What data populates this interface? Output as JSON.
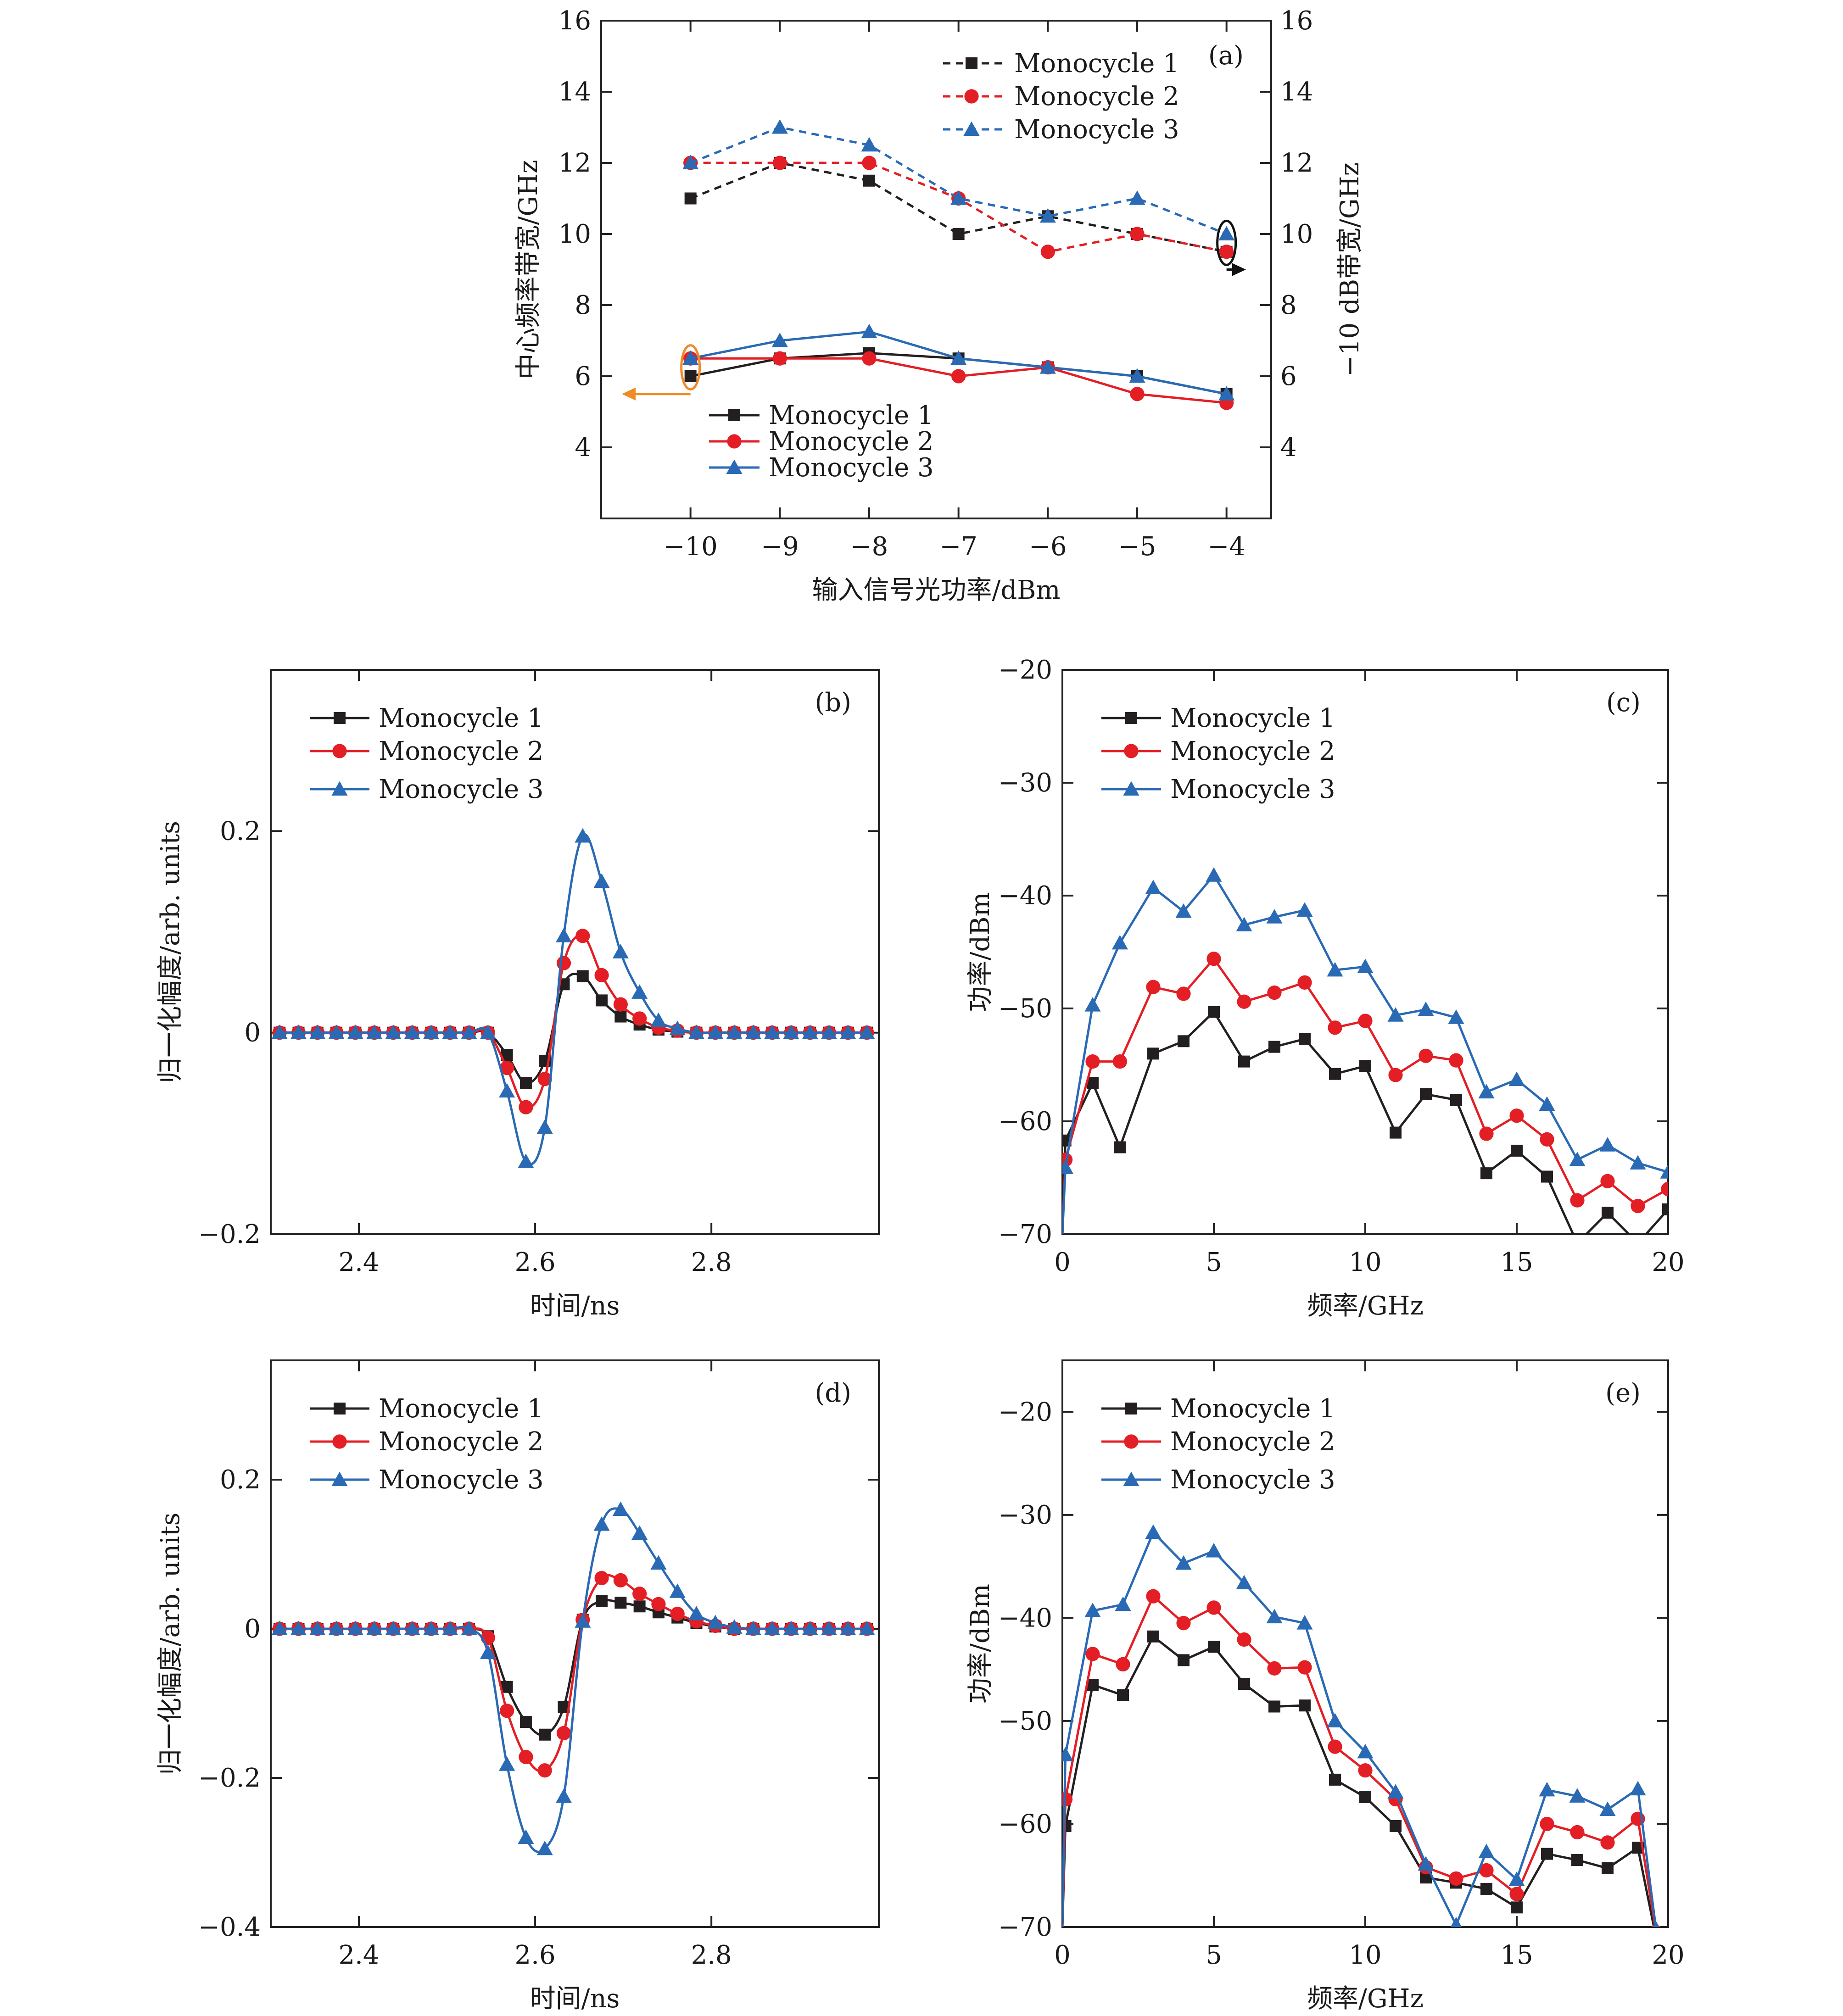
{
  "colors": {
    "black": "#231f20",
    "red": "#e31e24",
    "blue": "#2a6ab4",
    "orange": "#f08a24"
  },
  "chart_data": [
    {
      "id": "a",
      "type": "line",
      "panel_label": "(a)",
      "xlabel": "输入信号光功率/dBm",
      "ylabel": "中心频率带宽/GHz",
      "ylabel_right": "−10 dB带宽/GHz",
      "xlim": [
        -11.0,
        -3.5
      ],
      "ylim": [
        2,
        16
      ],
      "xticks": [
        -10,
        -9,
        -8,
        -7,
        -6,
        -5,
        -4
      ],
      "xtick_labels": [
        "−10",
        "−9",
        "−8",
        "−7",
        "−6",
        "−5",
        "−4"
      ],
      "yticks": [
        4,
        6,
        8,
        10,
        12,
        14,
        16
      ],
      "ytick_labels": [
        "4",
        "6",
        "8",
        "10",
        "12",
        "14",
        "16"
      ],
      "x": [
        -10,
        -9,
        -8,
        -7,
        -6,
        -5,
        -4
      ],
      "series": [
        {
          "name": "Monocycle 1",
          "group": "center",
          "color": "#231f20",
          "marker": "square",
          "dashed": false,
          "values": [
            6.0,
            6.5,
            6.65,
            6.5,
            6.25,
            6.0,
            5.5
          ]
        },
        {
          "name": "Monocycle 2",
          "group": "center",
          "color": "#e31e24",
          "marker": "circle",
          "dashed": false,
          "values": [
            6.5,
            6.5,
            6.5,
            6.0,
            6.25,
            5.5,
            5.25
          ]
        },
        {
          "name": "Monocycle 3",
          "group": "center",
          "color": "#2a6ab4",
          "marker": "triangle",
          "dashed": false,
          "values": [
            6.5,
            7.0,
            7.25,
            6.5,
            6.25,
            6.0,
            5.5
          ]
        },
        {
          "name": "Monocycle 1",
          "group": "bandwidth",
          "color": "#231f20",
          "marker": "square",
          "dashed": true,
          "values": [
            11.0,
            12.0,
            11.5,
            10.0,
            10.5,
            10.0,
            9.5
          ]
        },
        {
          "name": "Monocycle 2",
          "group": "bandwidth",
          "color": "#e31e24",
          "marker": "circle",
          "dashed": true,
          "values": [
            12.0,
            12.0,
            12.0,
            11.0,
            9.5,
            10.0,
            9.5
          ]
        },
        {
          "name": "Monocycle 3",
          "group": "bandwidth",
          "color": "#2a6ab4",
          "marker": "triangle",
          "dashed": true,
          "values": [
            12.0,
            13.0,
            12.5,
            11.0,
            10.5,
            11.0,
            10.0
          ]
        }
      ]
    },
    {
      "id": "b",
      "type": "line",
      "panel_label": "(b)",
      "xlabel": "时间/ns",
      "ylabel": "归一化幅度/arb. units",
      "xlim": [
        2.3,
        2.99
      ],
      "ylim": [
        -0.2,
        0.36
      ],
      "xticks": [
        2.4,
        2.6,
        2.8
      ],
      "xtick_labels": [
        "2.4",
        "2.6",
        "2.8"
      ],
      "yticks": [
        -0.2,
        0,
        0.2
      ],
      "ytick_labels": [
        "−0.2",
        "0",
        "0.2"
      ],
      "x": [
        2.31,
        2.3315,
        2.353,
        2.3745,
        2.396,
        2.4175,
        2.439,
        2.4605,
        2.482,
        2.5035,
        2.525,
        2.5465,
        2.568,
        2.5895,
        2.611,
        2.6325,
        2.654,
        2.6755,
        2.697,
        2.7185,
        2.74,
        2.7615,
        2.783,
        2.8045,
        2.826,
        2.8475,
        2.869,
        2.8905,
        2.912,
        2.9335,
        2.955,
        2.9765
      ],
      "series": [
        {
          "name": "Monocycle 1",
          "color": "#231f20",
          "marker": "square",
          "values": [
            0,
            0,
            0,
            0,
            0,
            0,
            0,
            0,
            0,
            0,
            0,
            0,
            -0.022,
            -0.05,
            -0.028,
            0.048,
            0.056,
            0.032,
            0.016,
            0.008,
            0.003,
            0.001,
            0,
            0,
            0,
            0,
            0,
            0,
            0,
            0,
            0,
            0
          ]
        },
        {
          "name": "Monocycle 2",
          "color": "#e31e24",
          "marker": "circle",
          "values": [
            0,
            0,
            0,
            0,
            0,
            0,
            0,
            0,
            0,
            0,
            0,
            0,
            -0.035,
            -0.074,
            -0.046,
            0.069,
            0.096,
            0.057,
            0.028,
            0.014,
            0.005,
            0.002,
            0,
            0,
            0,
            0,
            0,
            0,
            0,
            0,
            0,
            0
          ]
        },
        {
          "name": "Monocycle 3",
          "color": "#2a6ab4",
          "marker": "triangle",
          "values": [
            0,
            0,
            0,
            0,
            0,
            0,
            0,
            0,
            0,
            0,
            0,
            0,
            -0.058,
            -0.128,
            -0.094,
            0.096,
            0.195,
            0.15,
            0.08,
            0.04,
            0.012,
            0.004,
            0,
            0,
            0,
            0,
            0,
            0,
            0,
            0,
            0,
            0
          ]
        }
      ]
    },
    {
      "id": "c",
      "type": "line",
      "panel_label": "(c)",
      "xlabel": "频率/GHz",
      "ylabel": "功率/dBm",
      "xlim": [
        0,
        20
      ],
      "ylim": [
        -70,
        -20
      ],
      "xticks": [
        0,
        5,
        10,
        15,
        20
      ],
      "xtick_labels": [
        "0",
        "5",
        "10",
        "15",
        "20"
      ],
      "yticks": [
        -70,
        -60,
        -50,
        -40,
        -30,
        -20
      ],
      "ytick_labels": [
        "−70",
        "−60",
        "−50",
        "−40",
        "−30",
        "−20"
      ],
      "x": [
        0.1,
        1,
        1.9,
        3,
        4,
        5,
        6,
        7,
        8,
        9,
        10,
        11,
        12,
        13,
        14,
        15,
        16,
        17,
        18,
        19,
        20
      ],
      "series": [
        {
          "name": "Monocycle 1",
          "color": "#231f20",
          "marker": "square",
          "values": [
            -61.7,
            -56.6,
            -62.3,
            -54.0,
            -52.9,
            -50.3,
            -54.7,
            -53.4,
            -52.7,
            -55.8,
            -55.1,
            -61.0,
            -57.6,
            -58.1,
            -64.6,
            -62.6,
            -64.9,
            -70.8,
            -68.1,
            -70.8,
            -67.8
          ]
        },
        {
          "name": "Monocycle 2",
          "color": "#e31e24",
          "marker": "circle",
          "values": [
            -63.4,
            -54.7,
            -54.7,
            -48.1,
            -48.7,
            -45.6,
            -49.4,
            -48.6,
            -47.7,
            -51.7,
            -51.1,
            -55.9,
            -54.2,
            -54.6,
            -61.1,
            -59.5,
            -61.6,
            -67.0,
            -65.3,
            -67.5,
            -66.0
          ]
        },
        {
          "name": "Monocycle 3",
          "color": "#2a6ab4",
          "marker": "triangle",
          "values": [
            -64.1,
            -49.7,
            -44.2,
            -39.3,
            -41.4,
            -38.2,
            -42.6,
            -41.9,
            -41.3,
            -46.6,
            -46.3,
            -50.6,
            -50.1,
            -50.8,
            -57.4,
            -56.3,
            -58.5,
            -63.4,
            -62.1,
            -63.7,
            -64.5
          ]
        }
      ]
    },
    {
      "id": "d",
      "type": "line",
      "panel_label": "(d)",
      "xlabel": "时间/ns",
      "ylabel": "归一化幅度/arb. units",
      "xlim": [
        2.3,
        2.99
      ],
      "ylim": [
        -0.4,
        0.36
      ],
      "xticks": [
        2.4,
        2.6,
        2.8
      ],
      "xtick_labels": [
        "2.4",
        "2.6",
        "2.8"
      ],
      "yticks": [
        -0.4,
        -0.2,
        0,
        0.2
      ],
      "ytick_labels": [
        "−0.4",
        "−0.2",
        "0",
        "0.2"
      ],
      "x": [
        2.31,
        2.3315,
        2.353,
        2.3745,
        2.396,
        2.4175,
        2.439,
        2.4605,
        2.482,
        2.5035,
        2.525,
        2.5465,
        2.568,
        2.5895,
        2.611,
        2.6325,
        2.654,
        2.6755,
        2.697,
        2.7185,
        2.74,
        2.7615,
        2.783,
        2.8045,
        2.826,
        2.8475,
        2.869,
        2.8905,
        2.912,
        2.9335,
        2.955,
        2.9765
      ],
      "series": [
        {
          "name": "Monocycle 1",
          "color": "#231f20",
          "marker": "square",
          "values": [
            0,
            0,
            0,
            0,
            0,
            0,
            0,
            0,
            0,
            0,
            0,
            -0.01,
            -0.078,
            -0.125,
            -0.142,
            -0.105,
            0.012,
            0.037,
            0.035,
            0.03,
            0.022,
            0.015,
            0.008,
            0.003,
            0,
            0,
            0,
            0,
            0,
            0,
            0,
            0
          ]
        },
        {
          "name": "Monocycle 2",
          "color": "#e31e24",
          "marker": "circle",
          "values": [
            0,
            0,
            0,
            0,
            0,
            0,
            0,
            0,
            0,
            0,
            0,
            -0.012,
            -0.11,
            -0.172,
            -0.19,
            -0.14,
            0.012,
            0.068,
            0.065,
            0.047,
            0.033,
            0.02,
            0.01,
            0.004,
            0,
            0,
            0,
            0,
            0,
            0,
            0,
            0
          ]
        },
        {
          "name": "Monocycle 3",
          "color": "#2a6ab4",
          "marker": "triangle",
          "values": [
            0,
            0,
            0,
            0,
            0,
            0,
            0,
            0,
            0,
            0,
            0,
            -0.032,
            -0.182,
            -0.28,
            -0.295,
            -0.225,
            0.01,
            0.14,
            0.16,
            0.128,
            0.088,
            0.05,
            0.02,
            0.008,
            0.002,
            0,
            0,
            0,
            0,
            0,
            0,
            0
          ]
        }
      ]
    },
    {
      "id": "e",
      "type": "line",
      "panel_label": "(e)",
      "xlabel": "频率/GHz",
      "ylabel": "功率/dBm",
      "xlim": [
        0,
        20
      ],
      "ylim": [
        -70,
        -15
      ],
      "xticks": [
        0,
        5,
        10,
        15,
        20
      ],
      "xtick_labels": [
        "0",
        "5",
        "10",
        "15",
        "20"
      ],
      "yticks": [
        -70,
        -60,
        -50,
        -40,
        -30,
        -20
      ],
      "ytick_labels": [
        "−70",
        "−60",
        "−50",
        "−40",
        "−30",
        "−20"
      ],
      "x": [
        0.1,
        1,
        2,
        3,
        4,
        5,
        6,
        7,
        8,
        9,
        10,
        11,
        12,
        13,
        14,
        15,
        16,
        17,
        18,
        19,
        19.6
      ],
      "series": [
        {
          "name": "Monocycle 1",
          "color": "#231f20",
          "marker": "square",
          "values": [
            -60.2,
            -46.5,
            -47.5,
            -41.8,
            -44.1,
            -42.8,
            -46.4,
            -48.6,
            -48.5,
            -55.7,
            -57.4,
            -60.2,
            -65.2,
            -65.7,
            -66.3,
            -68.1,
            -62.9,
            -63.5,
            -64.3,
            -62.3,
            -71.0
          ]
        },
        {
          "name": "Monocycle 2",
          "color": "#e31e24",
          "marker": "circle",
          "values": [
            -57.6,
            -43.5,
            -44.5,
            -37.9,
            -40.5,
            -39.0,
            -42.1,
            -44.9,
            -44.8,
            -52.5,
            -54.8,
            -57.6,
            -64.2,
            -65.3,
            -64.5,
            -66.8,
            -60.0,
            -60.8,
            -61.8,
            -59.5,
            -70.5
          ]
        },
        {
          "name": "Monocycle 3",
          "color": "#2a6ab4",
          "marker": "triangle",
          "values": [
            -53.3,
            -39.3,
            -38.7,
            -31.7,
            -34.7,
            -33.5,
            -36.6,
            -39.9,
            -40.5,
            -50.0,
            -53.0,
            -56.9,
            -63.9,
            -69.8,
            -62.7,
            -65.4,
            -56.7,
            -57.3,
            -58.6,
            -56.6,
            -70.2
          ]
        }
      ]
    }
  ]
}
